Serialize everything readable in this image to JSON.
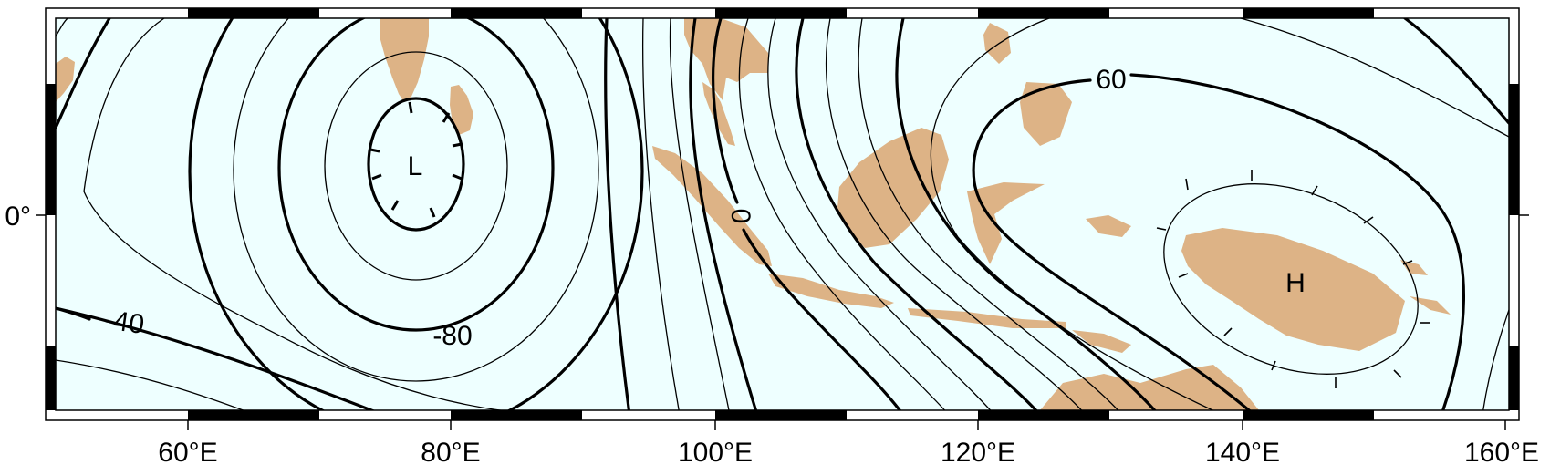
{
  "map": {
    "colors": {
      "ocean": "#eeffff",
      "land": "#ddb386",
      "contour": "#000000",
      "frame": "#000000"
    }
  },
  "axes": {
    "x_ticks": [
      "60°E",
      "80°E",
      "100°E",
      "120°E",
      "140°E",
      "160°E"
    ],
    "y_ticks": [
      "0°"
    ]
  },
  "contours": {
    "labels": [
      "-40",
      "-80",
      "0",
      "60"
    ]
  },
  "extrema": {
    "low": "L",
    "high": "H"
  }
}
